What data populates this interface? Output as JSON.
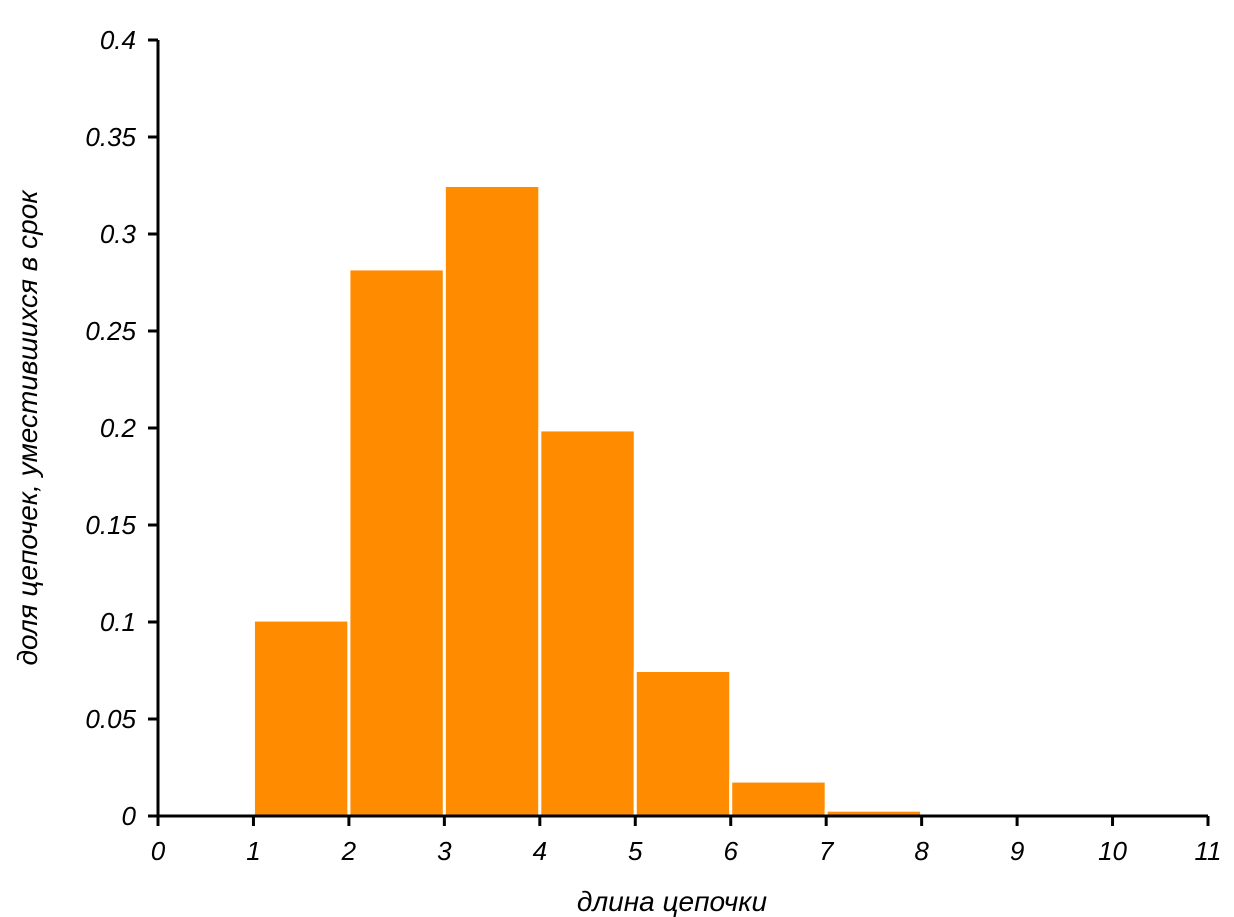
{
  "chart_data": {
    "type": "bar",
    "title": "",
    "xlabel": "длина цепочки",
    "ylabel": "доля цепочек, уместившихся в срок",
    "xlim": [
      0,
      11
    ],
    "ylim": [
      0,
      0.4
    ],
    "x_ticks": [
      "0",
      "1",
      "2",
      "3",
      "4",
      "5",
      "6",
      "7",
      "8",
      "9",
      "10",
      "11"
    ],
    "y_ticks": [
      "0",
      "0.05",
      "0.1",
      "0.15",
      "0.2",
      "0.25",
      "0.3",
      "0.35",
      "0.4"
    ],
    "bins": [
      {
        "x0": 1,
        "x1": 2,
        "value": 0.101
      },
      {
        "x0": 2,
        "x1": 3,
        "value": 0.282
      },
      {
        "x0": 3,
        "x1": 4,
        "value": 0.325
      },
      {
        "x0": 4,
        "x1": 5,
        "value": 0.199
      },
      {
        "x0": 5,
        "x1": 6,
        "value": 0.075
      },
      {
        "x0": 6,
        "x1": 7,
        "value": 0.018
      },
      {
        "x0": 7,
        "x1": 8,
        "value": 0.003
      },
      {
        "x0": 8,
        "x1": 9,
        "value": 0.0005
      }
    ],
    "bar_color": "#ff8c00",
    "grid": false,
    "legend": "none"
  }
}
